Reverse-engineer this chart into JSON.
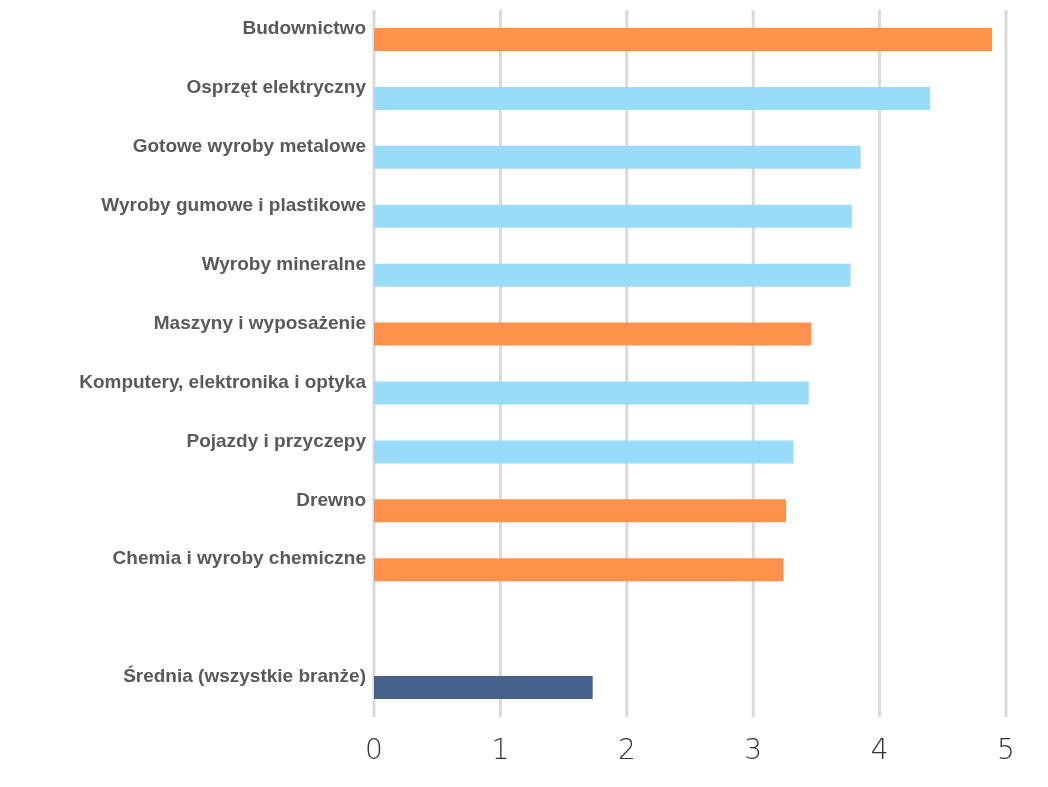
{
  "chart_data": {
    "type": "bar",
    "orientation": "horizontal",
    "categories": [
      "Budownictwo",
      "Osprzęt elektryczny",
      "Gotowe wyroby metalowe",
      "Wyroby gumowe i plastikowe",
      "Wyroby mineralne",
      "Maszyny i wyposażenie",
      "Komputery, elektronika i optyka",
      "Pojazdy i przyczepy",
      "Drewno",
      "Chemia i wyroby chemiczne",
      null,
      "Średnia (wszystkie branże)"
    ],
    "values": [
      4.89,
      4.4,
      3.85,
      3.78,
      3.77,
      3.46,
      3.44,
      3.32,
      3.26,
      3.24,
      null,
      1.73
    ],
    "colors": [
      "#ff914d",
      "#99dcf9",
      "#99dcf9",
      "#99dcf9",
      "#99dcf9",
      "#ff914d",
      "#99dcf9",
      "#99dcf9",
      "#ff914d",
      "#ff914d",
      "#ffffff",
      "#46628c"
    ],
    "xlim": [
      0,
      5
    ],
    "xticks": [
      0,
      1,
      2,
      3,
      4,
      5
    ],
    "grid": "x"
  }
}
